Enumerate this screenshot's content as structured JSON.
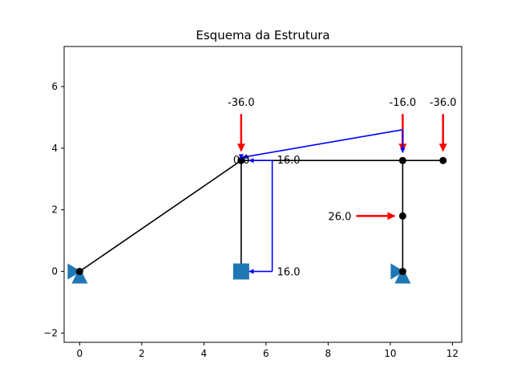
{
  "chart_data": {
    "type": "structural-diagram",
    "title": "Esquema da Estrutura",
    "xlabel": "",
    "ylabel": "",
    "xlim": [
      -0.5,
      12.3
    ],
    "ylim": [
      -2.3,
      7.3
    ],
    "x_ticks": [
      0,
      2,
      4,
      6,
      8,
      10,
      12
    ],
    "y_ticks": [
      -2,
      0,
      2,
      4,
      6
    ],
    "grid": false,
    "colors": {
      "member": "#000000",
      "support": "#1f77b4",
      "load": "#ff0000",
      "moment": "#0000ff"
    },
    "members": [
      [
        [
          0,
          0
        ],
        [
          5.2,
          3.6
        ]
      ],
      [
        [
          5.2,
          0
        ],
        [
          5.2,
          3.6
        ]
      ],
      [
        [
          5.2,
          3.6
        ],
        [
          11.7,
          3.6
        ]
      ],
      [
        [
          10.4,
          0
        ],
        [
          10.4,
          3.6
        ]
      ]
    ],
    "nodes": [
      [
        0,
        0
      ],
      [
        5.2,
        3.6
      ],
      [
        10.4,
        3.6
      ],
      [
        11.7,
        3.6
      ],
      [
        10.4,
        1.8
      ],
      [
        10.4,
        0
      ]
    ],
    "supports": [
      {
        "type": "pin-roller",
        "at": [
          0,
          0
        ]
      },
      {
        "type": "fixed",
        "at": [
          5.2,
          0
        ]
      },
      {
        "type": "pin-roller",
        "at": [
          10.4,
          0
        ]
      }
    ],
    "point_loads": [
      {
        "label": "-36.0",
        "at": [
          5.2,
          3.6
        ],
        "direction": "down"
      },
      {
        "label": "-16.0",
        "at": [
          10.4,
          3.6
        ],
        "direction": "down"
      },
      {
        "label": "-36.0",
        "at": [
          11.7,
          3.6
        ],
        "direction": "down"
      },
      {
        "label": "26.0",
        "at": [
          10.4,
          1.8
        ],
        "direction": "right"
      }
    ],
    "blue_loads": [
      {
        "label": "16.0",
        "at": [
          5.2,
          3.6
        ]
      },
      {
        "label": "16.0",
        "at": [
          5.2,
          0
        ]
      }
    ],
    "distributed_line": [
      [
        5.2,
        3.6
      ],
      [
        10.4,
        4.6
      ]
    ],
    "extra_labels": [
      {
        "text": "0.0",
        "at": [
          5.2,
          3.6
        ]
      }
    ]
  }
}
